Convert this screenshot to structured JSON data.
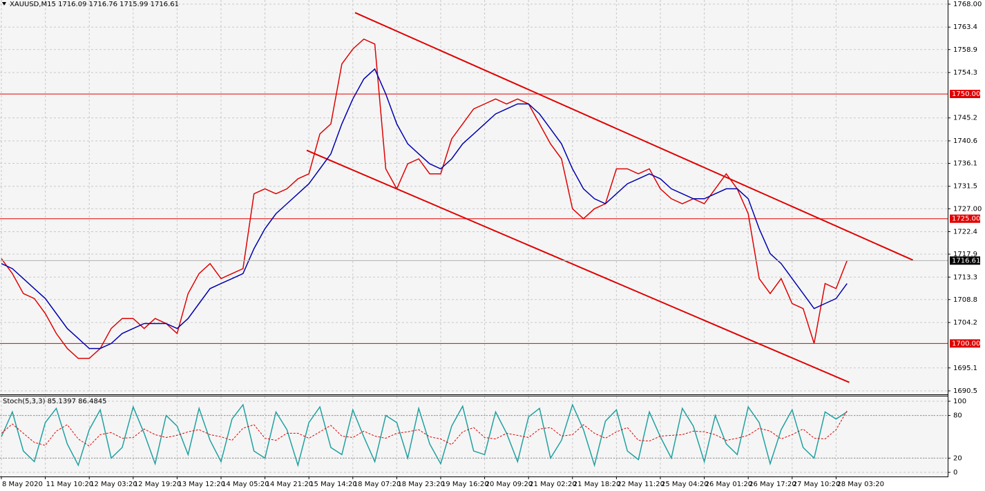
{
  "chart_data": [
    {
      "type": "line",
      "title": "XAUUSD,M15 1716.09 1716.76 1715.99 1716.61",
      "categories": [
        "8 May 2020",
        null,
        null,
        null,
        "11 May 10:20",
        null,
        null,
        null,
        "12 May 03:20",
        null,
        null,
        null,
        "12 May 19:20",
        null,
        null,
        null,
        "13 May 12:20",
        null,
        null,
        null,
        "14 May 05:20",
        null,
        null,
        null,
        "14 May 21:20",
        null,
        null,
        null,
        "15 May 14:20",
        null,
        null,
        null,
        "18 May 07:20",
        null,
        null,
        null,
        "18 May 23:20",
        null,
        null,
        null,
        "19 May 16:20",
        null,
        null,
        null,
        "20 May 09:20",
        null,
        null,
        null,
        "21 May 02:20",
        null,
        null,
        null,
        "21 May 18:20",
        null,
        null,
        null,
        "22 May 11:20",
        null,
        null,
        null,
        "25 May 04:20",
        null,
        null,
        null,
        "26 May 01:20",
        null,
        null,
        null,
        "26 May 17:20",
        null,
        null,
        null,
        "27 May 10:20",
        null,
        null,
        null,
        "28 May 03:20",
        null
      ],
      "series": [
        {
          "color": "#e00000",
          "values": [
            1717,
            1714,
            1710,
            1709,
            1706,
            1702,
            1699,
            1697,
            1697,
            1699,
            1703,
            1705,
            1705,
            1703,
            1705,
            1704,
            1702,
            1710,
            1714,
            1716,
            1713,
            1714,
            1715,
            1730,
            1731,
            1730,
            1731,
            1733,
            1734,
            1742,
            1744,
            1756,
            1759,
            1761,
            1760,
            1735,
            1731,
            1736,
            1737,
            1734,
            1734,
            1741,
            1744,
            1747,
            1748,
            1749,
            1748,
            1749,
            1748,
            1744,
            1740,
            1737,
            1727,
            1725,
            1727,
            1728,
            1735,
            1735,
            1734,
            1735,
            1731,
            1729,
            1728,
            1729,
            1728,
            1731,
            1734,
            1731,
            1726,
            1713,
            1710,
            1713,
            1708,
            1707,
            1700,
            1712,
            1711,
            1716.61
          ]
        },
        {
          "color": "#0000b0",
          "values": [
            1716,
            1715,
            1713,
            1711,
            1709,
            1706,
            1703,
            1701,
            1699,
            1699,
            1700,
            1702,
            1703,
            1704,
            1704,
            1704,
            1703,
            1705,
            1708,
            1711,
            1712,
            1713,
            1714,
            1719,
            1723,
            1726,
            1728,
            1730,
            1732,
            1735,
            1738,
            1744,
            1749,
            1753,
            1755,
            1750,
            1744,
            1740,
            1738,
            1736,
            1735,
            1737,
            1740,
            1742,
            1744,
            1746,
            1747,
            1748,
            1748,
            1746,
            1743,
            1740,
            1735,
            1731,
            1729,
            1728,
            1730,
            1732,
            1733,
            1734,
            1733,
            1731,
            1730,
            1729,
            1729,
            1730,
            1731,
            1731,
            1729,
            1723,
            1718,
            1716,
            1713,
            1710,
            1707,
            1708,
            1709,
            1712
          ]
        }
      ],
      "ylim": [
        1690.5,
        1768.0
      ],
      "yticks": [
        {
          "value": 1768.0,
          "label": "1768.00"
        },
        1763.4,
        1758.9,
        1754.3,
        1745.2,
        1740.6,
        1736.1,
        1731.5,
        {
          "value": 1727.0,
          "label": "1727.00"
        },
        1722.4,
        1717.9,
        1713.3,
        1708.8,
        1704.2,
        1695.1,
        1690.5
      ],
      "hlines": [
        {
          "value": 1750,
          "label": "1750.00"
        },
        {
          "value": 1725,
          "label": "1725.00"
        },
        {
          "value": 1700,
          "label": "1700.00"
        }
      ],
      "hline_color": "#e00000",
      "last_price": 1716.61,
      "trendlines": [
        {
          "x": [
            32.2,
            83.0
          ],
          "y": [
            1766.3,
            1716.7
          ]
        },
        {
          "x": [
            27.8,
            77.2
          ],
          "y": [
            1738.7,
            1692.2
          ]
        }
      ],
      "grid": true
    },
    {
      "type": "line",
      "title": "Stoch(5,3,3) 85.1397 86.4845",
      "series": [
        {
          "color": "#20a0a0",
          "values": [
            50,
            85,
            30,
            15,
            70,
            90,
            40,
            10,
            60,
            88,
            20,
            35,
            92,
            55,
            12,
            80,
            65,
            25,
            90,
            45,
            15,
            75,
            95,
            30,
            20,
            85,
            60,
            10,
            70,
            92,
            35,
            25,
            88,
            50,
            15,
            80,
            70,
            20,
            90,
            40,
            12,
            65,
            93,
            30,
            25,
            85,
            55,
            15,
            78,
            90,
            20,
            45,
            95,
            60,
            10,
            72,
            88,
            30,
            18,
            85,
            50,
            20,
            90,
            65,
            15,
            80,
            40,
            25,
            92,
            70,
            12,
            60,
            88,
            35,
            20,
            85,
            75,
            85.1
          ]
        },
        {
          "color": "#e00000",
          "dashed": true,
          "values": [
            55,
            68,
            55,
            42,
            38,
            58,
            67,
            47,
            37,
            53,
            56,
            48,
            49,
            61,
            53,
            49,
            52,
            57,
            60,
            53,
            50,
            45,
            62,
            67,
            48,
            45,
            55,
            55,
            48,
            57,
            66,
            51,
            49,
            58,
            51,
            48,
            55,
            57,
            60,
            50,
            47,
            39,
            57,
            63,
            49,
            47,
            55,
            52,
            49,
            61,
            63,
            51,
            53,
            67,
            55,
            48,
            57,
            63,
            45,
            44,
            51,
            52,
            53,
            58,
            57,
            53,
            45,
            48,
            52,
            62,
            58,
            47,
            53,
            61,
            48,
            47,
            60,
            86.5
          ]
        }
      ],
      "ylim": [
        0,
        100
      ],
      "yticks": [
        100,
        80,
        20,
        0
      ],
      "levels": [
        80,
        20
      ],
      "grid": true
    }
  ]
}
